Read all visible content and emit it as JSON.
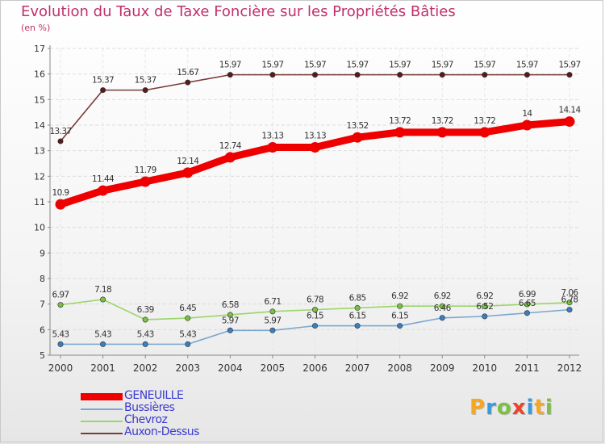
{
  "header": {
    "title": "Evolution du Taux de Taxe Foncière sur les Propriétés Bâties",
    "subtitle": "(en %)"
  },
  "brand": {
    "letters": [
      "P",
      "r",
      "o",
      "x",
      "i",
      "t",
      "i"
    ],
    "colors": [
      "#f5a623",
      "#3a9ad9",
      "#7ac143",
      "#e8462a",
      "#3a9ad9",
      "#f5a623",
      "#7ac143"
    ]
  },
  "chart_data": {
    "type": "line",
    "title": "Evolution du Taux de Taxe Foncière sur les Propriétés Bâties",
    "ylabel": "(en %)",
    "xlabel": "",
    "ylim": [
      5,
      17
    ],
    "yticks": [
      5,
      6,
      7,
      8,
      9,
      10,
      11,
      12,
      13,
      14,
      15,
      16,
      17
    ],
    "categories": [
      "2000",
      "2001",
      "2002",
      "2003",
      "2004",
      "2005",
      "2006",
      "2007",
      "2008",
      "2009",
      "2010",
      "2011",
      "2012"
    ],
    "legend_position": "bottom-left",
    "series": [
      {
        "name": "Auxon-Dessus",
        "color": "#7a3a3a",
        "marker": "#5a1a1a",
        "width": "thin",
        "values": [
          13.37,
          15.37,
          15.37,
          15.67,
          15.97,
          15.97,
          15.97,
          15.97,
          15.97,
          15.97,
          15.97,
          15.97,
          15.97
        ],
        "labels": [
          "13.37",
          "15.37",
          "15.37",
          "15.67",
          "15.97",
          "15.97",
          "15.97",
          "15.97",
          "15.97",
          "15.97",
          "15.97",
          "15.97",
          "15.97"
        ]
      },
      {
        "name": "Chevroz",
        "color": "#9ad66a",
        "marker": "#7ac143",
        "width": "thin",
        "values": [
          6.97,
          7.18,
          6.39,
          6.45,
          6.58,
          6.71,
          6.78,
          6.85,
          6.92,
          6.92,
          6.92,
          6.99,
          7.06
        ],
        "labels": [
          "6.97",
          "7.18",
          "6.39",
          "6.45",
          "6.58",
          "6.71",
          "6.78",
          "6.85",
          "6.92",
          "6.92",
          "6.92",
          "6.99",
          "7.06"
        ]
      },
      {
        "name": "Bussières",
        "color": "#7aa6cf",
        "marker": "#3a7fc0",
        "width": "thin",
        "values": [
          5.43,
          5.43,
          5.43,
          5.43,
          5.97,
          5.97,
          6.15,
          6.15,
          6.15,
          6.46,
          6.52,
          6.65,
          6.78
        ],
        "labels": [
          "5.43",
          "5.43",
          "5.43",
          "5.43",
          "5.97",
          "5.97",
          "6.15",
          "6.15",
          "6.15",
          "6.46",
          "6.52",
          "6.65",
          "6.78"
        ]
      },
      {
        "name": "GENEUILLE",
        "color": "#ee0000",
        "marker": "#ee0000",
        "width": "thick",
        "values": [
          10.9,
          11.44,
          11.79,
          12.14,
          12.74,
          13.13,
          13.13,
          13.52,
          13.72,
          13.72,
          13.72,
          14.0,
          14.14
        ],
        "labels": [
          "10.9",
          "11.44",
          "11.79",
          "12.14",
          "12.74",
          "13.13",
          "13.13",
          "13.52",
          "13.72",
          "13.72",
          "13.72",
          "14",
          "14.14"
        ]
      }
    ],
    "legend": [
      "GENEUILLE",
      "Bussières",
      "Chevroz",
      "Auxon-Dessus"
    ]
  }
}
